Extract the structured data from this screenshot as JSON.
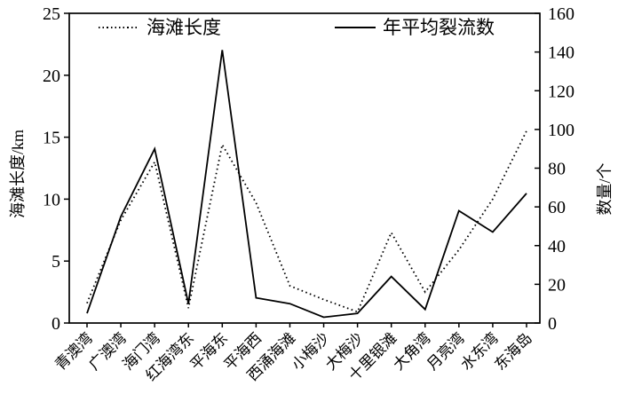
{
  "chart_data": {
    "type": "line",
    "title": "",
    "categories": [
      "青澳湾",
      "广澳湾",
      "海门湾",
      "红海湾东",
      "平海东",
      "平海西",
      "西涌海滩",
      "小梅沙",
      "大梅沙",
      "十里银滩",
      "大角湾",
      "月亮湾",
      "水东湾",
      "东海岛"
    ],
    "series": [
      {
        "name": "海滩长度",
        "axis": "left",
        "line_style": "dotted",
        "values": [
          1.6,
          8.3,
          13.0,
          1.2,
          14.4,
          9.7,
          3.0,
          1.9,
          0.9,
          7.3,
          2.5,
          5.9,
          10.0,
          15.5
        ]
      },
      {
        "name": "年平均裂流数",
        "axis": "right",
        "line_style": "solid",
        "values": [
          5,
          55,
          90,
          10,
          141,
          13,
          10,
          3,
          5,
          24,
          7,
          58,
          47,
          67
        ]
      }
    ],
    "left_axis": {
      "label": "海滩长度/km",
      "min": 0,
      "max": 25,
      "ticks": [
        0,
        5,
        10,
        15,
        20,
        25
      ]
    },
    "right_axis": {
      "label": "数量/个",
      "min": 0,
      "max": 160,
      "ticks": [
        0,
        20,
        40,
        60,
        80,
        100,
        120,
        140,
        160
      ]
    },
    "legend_position": "top-inside",
    "grid": false,
    "colors": {
      "foreground": "#000000",
      "background": "#ffffff"
    }
  }
}
